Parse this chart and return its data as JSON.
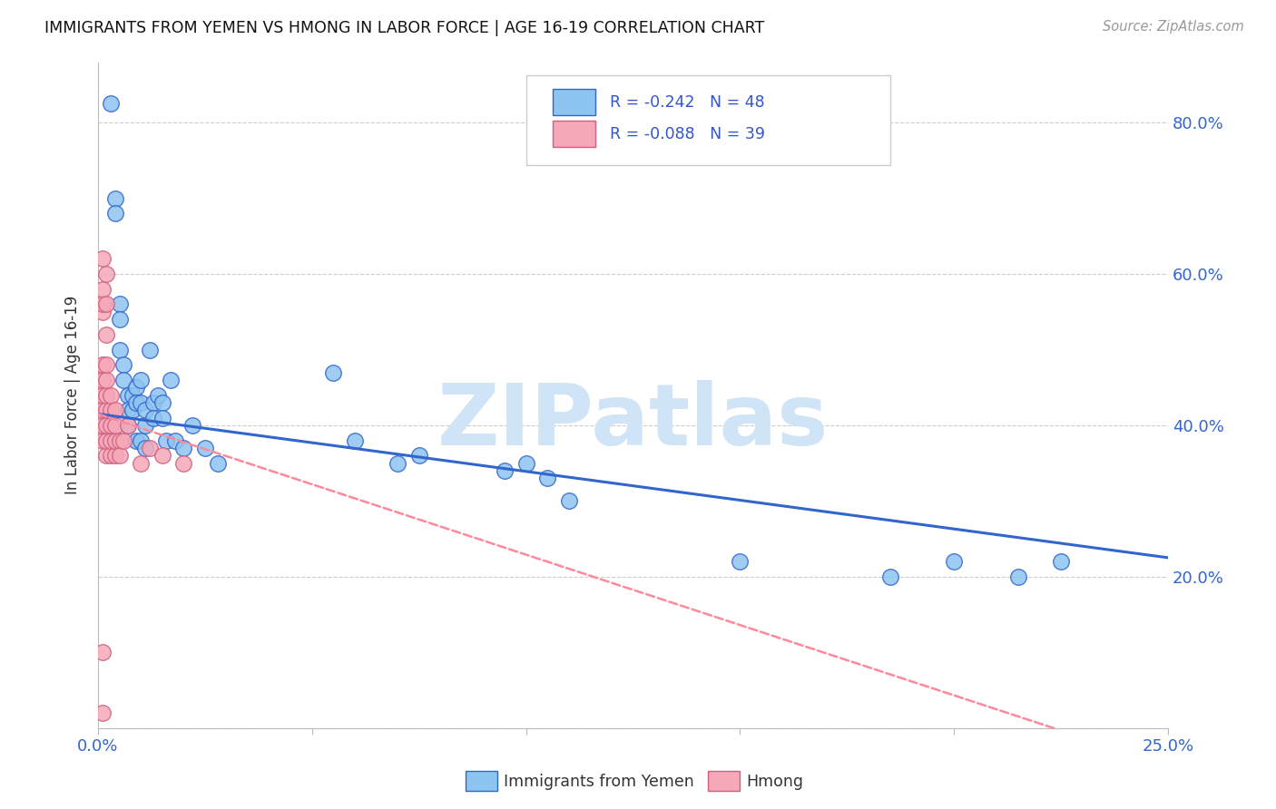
{
  "title": "IMMIGRANTS FROM YEMEN VS HMONG IN LABOR FORCE | AGE 16-19 CORRELATION CHART",
  "source": "Source: ZipAtlas.com",
  "ylabel": "In Labor Force | Age 16-19",
  "xmin": 0.0,
  "xmax": 0.25,
  "ymin": 0.0,
  "ymax": 0.88,
  "x_ticks": [
    0.0,
    0.05,
    0.1,
    0.15,
    0.2,
    0.25
  ],
  "x_tick_labels": [
    "0.0%",
    "",
    "",
    "",
    "",
    "25.0%"
  ],
  "y_ticks": [
    0.0,
    0.2,
    0.4,
    0.6,
    0.8
  ],
  "y_tick_labels_right": [
    "",
    "20.0%",
    "40.0%",
    "60.0%",
    "80.0%"
  ],
  "legend_r_yemen": "R = -0.242",
  "legend_n_yemen": "N = 48",
  "legend_r_hmong": "R = -0.088",
  "legend_n_hmong": "N = 39",
  "legend_label_yemen": "Immigrants from Yemen",
  "legend_label_hmong": "Hmong",
  "color_yemen": "#8DC4F0",
  "color_hmong": "#F5A8B8",
  "color_yemen_line": "#3366CC",
  "color_hmong_line": "#FF8899",
  "watermark_color": "#D0E4F8",
  "yemen_x": [
    0.003,
    0.004,
    0.004,
    0.005,
    0.005,
    0.005,
    0.006,
    0.006,
    0.007,
    0.007,
    0.007,
    0.008,
    0.008,
    0.009,
    0.009,
    0.009,
    0.01,
    0.01,
    0.01,
    0.011,
    0.011,
    0.011,
    0.012,
    0.013,
    0.013,
    0.014,
    0.015,
    0.015,
    0.016,
    0.017,
    0.018,
    0.02,
    0.022,
    0.025,
    0.028,
    0.055,
    0.06,
    0.07,
    0.075,
    0.095,
    0.1,
    0.105,
    0.11,
    0.15,
    0.185,
    0.2,
    0.215,
    0.225
  ],
  "yemen_y": [
    0.825,
    0.7,
    0.68,
    0.56,
    0.54,
    0.5,
    0.48,
    0.46,
    0.44,
    0.42,
    0.4,
    0.44,
    0.42,
    0.45,
    0.43,
    0.38,
    0.46,
    0.43,
    0.38,
    0.42,
    0.4,
    0.37,
    0.5,
    0.43,
    0.41,
    0.44,
    0.43,
    0.41,
    0.38,
    0.46,
    0.38,
    0.37,
    0.4,
    0.37,
    0.35,
    0.47,
    0.38,
    0.35,
    0.36,
    0.34,
    0.35,
    0.33,
    0.3,
    0.22,
    0.2,
    0.22,
    0.2,
    0.22
  ],
  "hmong_x": [
    0.001,
    0.001,
    0.001,
    0.001,
    0.001,
    0.001,
    0.001,
    0.001,
    0.001,
    0.001,
    0.001,
    0.001,
    0.002,
    0.002,
    0.002,
    0.002,
    0.002,
    0.002,
    0.002,
    0.002,
    0.002,
    0.002,
    0.003,
    0.003,
    0.003,
    0.003,
    0.003,
    0.004,
    0.004,
    0.004,
    0.004,
    0.005,
    0.005,
    0.006,
    0.007,
    0.01,
    0.012,
    0.015,
    0.02
  ],
  "hmong_y": [
    0.02,
    0.1,
    0.38,
    0.4,
    0.42,
    0.44,
    0.46,
    0.48,
    0.55,
    0.56,
    0.58,
    0.62,
    0.36,
    0.38,
    0.4,
    0.42,
    0.44,
    0.46,
    0.48,
    0.52,
    0.56,
    0.6,
    0.36,
    0.38,
    0.4,
    0.42,
    0.44,
    0.36,
    0.38,
    0.4,
    0.42,
    0.38,
    0.36,
    0.38,
    0.4,
    0.35,
    0.37,
    0.36,
    0.35
  ]
}
